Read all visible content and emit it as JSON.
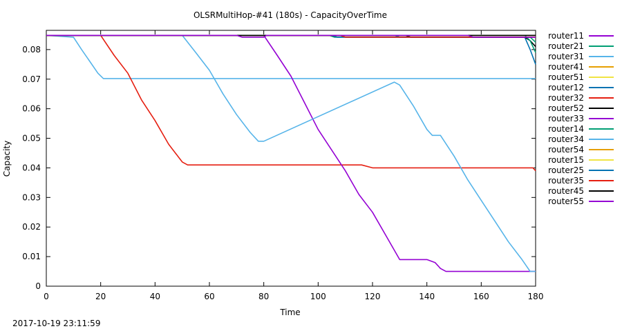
{
  "chart_data": {
    "type": "line",
    "title": "OLSRMultiHop-#41 (180s) - CapacityOverTime",
    "xlabel": "Time",
    "ylabel": "Capacity",
    "xlim": [
      0,
      180
    ],
    "ylim": [
      0,
      0.0865
    ],
    "xticks": [
      0,
      20,
      40,
      60,
      80,
      100,
      120,
      140,
      160,
      180
    ],
    "yticks": [
      0,
      0.01,
      0.02,
      0.03,
      0.04,
      0.05,
      0.06,
      0.07,
      0.08
    ],
    "ytick_labels": [
      "0",
      "0.01",
      "0.02",
      "0.03",
      "0.04",
      "0.05",
      "0.06",
      "0.07",
      "0.08"
    ],
    "grid": false,
    "legend_position": "right",
    "series": [
      {
        "name": "router11",
        "color": "#9400d3",
        "x": [
          0,
          180
        ],
        "y": [
          0.0848,
          0.0848
        ]
      },
      {
        "name": "router21",
        "color": "#009e73",
        "x": [
          0,
          104,
          106,
          130,
          178,
          180
        ],
        "y": [
          0.0848,
          0.0848,
          0.0842,
          0.0842,
          0.0842,
          0.0825
        ]
      },
      {
        "name": "router31",
        "color": "#56b4e9",
        "x": [
          0,
          10,
          13,
          16,
          19,
          21,
          180
        ],
        "y": [
          0.0848,
          0.0842,
          0.08,
          0.076,
          0.072,
          0.0702,
          0.0702
        ]
      },
      {
        "name": "router41",
        "color": "#e69f00",
        "x": [
          0,
          180
        ],
        "y": [
          0.0848,
          0.0848
        ]
      },
      {
        "name": "router51",
        "color": "#f0e442",
        "x": [
          0,
          180
        ],
        "y": [
          0.0848,
          0.0848
        ]
      },
      {
        "name": "router12",
        "color": "#0072b2",
        "x": [
          0,
          128,
          130,
          176,
          178,
          180
        ],
        "y": [
          0.0848,
          0.0848,
          0.0842,
          0.0842,
          0.08,
          0.075
        ]
      },
      {
        "name": "router32",
        "color": "#e51e10",
        "x": [
          0,
          20,
          25,
          30,
          35,
          40,
          45,
          50,
          52,
          116,
          120,
          179,
          180
        ],
        "y": [
          0.0848,
          0.0848,
          0.078,
          0.072,
          0.063,
          0.056,
          0.048,
          0.042,
          0.041,
          0.041,
          0.04,
          0.04,
          0.039
        ]
      },
      {
        "name": "router52",
        "color": "#000000",
        "x": [
          0,
          132,
          134,
          176,
          178,
          180
        ],
        "y": [
          0.0848,
          0.0848,
          0.0842,
          0.0842,
          0.083,
          0.081
        ]
      },
      {
        "name": "router33",
        "color": "#9400d3",
        "x": [
          0,
          80,
          85,
          90,
          95,
          100,
          105,
          110,
          115,
          120,
          125,
          130,
          140,
          143,
          145,
          147,
          180
        ],
        "y": [
          0.0848,
          0.0848,
          0.078,
          0.071,
          0.062,
          0.053,
          0.046,
          0.039,
          0.031,
          0.025,
          0.017,
          0.009,
          0.009,
          0.008,
          0.006,
          0.005,
          0.005
        ]
      },
      {
        "name": "router14",
        "color": "#009e73",
        "x": [
          0,
          176,
          178,
          180
        ],
        "y": [
          0.0848,
          0.0848,
          0.083,
          0.079
        ]
      },
      {
        "name": "router34",
        "color": "#56b4e9",
        "x": [
          0,
          50,
          55,
          60,
          65,
          70,
          75,
          78,
          80,
          128,
          130,
          135,
          140,
          142,
          145,
          150,
          155,
          160,
          165,
          170,
          175,
          178,
          180
        ],
        "y": [
          0.0848,
          0.0848,
          0.079,
          0.073,
          0.065,
          0.058,
          0.052,
          0.049,
          0.049,
          0.069,
          0.068,
          0.061,
          0.053,
          0.051,
          0.051,
          0.044,
          0.036,
          0.029,
          0.022,
          0.015,
          0.009,
          0.005,
          0.005
        ]
      },
      {
        "name": "router54",
        "color": "#e69f00",
        "x": [
          0,
          180
        ],
        "y": [
          0.0848,
          0.0848
        ]
      },
      {
        "name": "router15",
        "color": "#f0e442",
        "x": [
          0,
          180
        ],
        "y": [
          0.0848,
          0.0848
        ]
      },
      {
        "name": "router25",
        "color": "#0072b2",
        "x": [
          0,
          105,
          107,
          180
        ],
        "y": [
          0.0848,
          0.0848,
          0.0842,
          0.0842
        ]
      },
      {
        "name": "router35",
        "color": "#e51e10",
        "x": [
          0,
          108,
          110,
          180
        ],
        "y": [
          0.0848,
          0.0848,
          0.0842,
          0.0842
        ]
      },
      {
        "name": "router45",
        "color": "#000000",
        "x": [
          0,
          180
        ],
        "y": [
          0.0848,
          0.0848
        ]
      },
      {
        "name": "router55",
        "color": "#9400d3",
        "x": [
          0,
          70,
          72,
          80,
          81,
          155,
          157,
          180
        ],
        "y": [
          0.0848,
          0.0848,
          0.0842,
          0.0842,
          0.0848,
          0.0848,
          0.0842,
          0.0842
        ]
      }
    ]
  },
  "timestamp": "2017-10-19 23:11:59"
}
